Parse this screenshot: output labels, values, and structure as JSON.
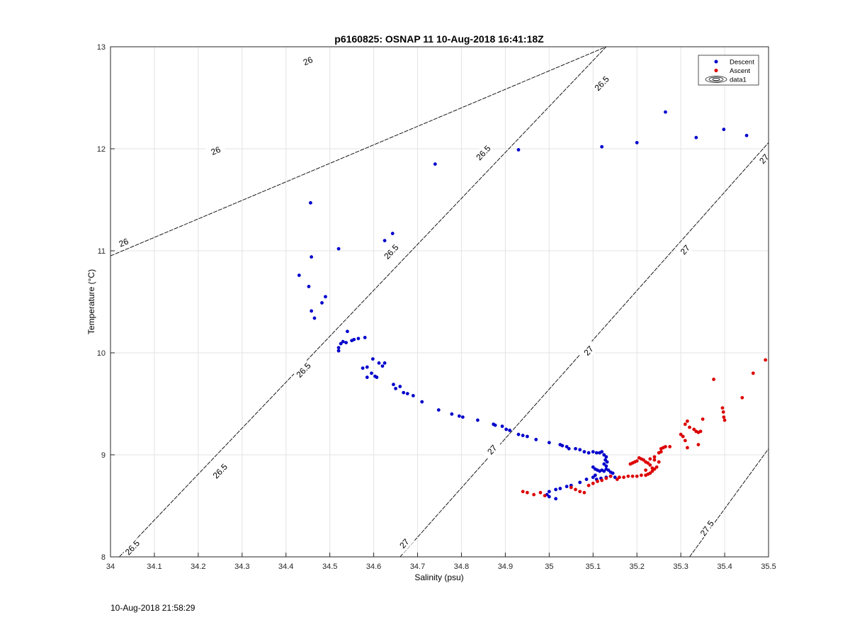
{
  "chart_data": {
    "type": "scatter",
    "title": "p6160825: OSNAP 11 10-Aug-2018 16:41:18Z",
    "xlabel": "Salinity (psu)",
    "ylabel": "Temperature (°C)",
    "xlim": [
      34,
      35.5
    ],
    "ylim": [
      8,
      13
    ],
    "xticks": [
      "34",
      "34.1",
      "34.2",
      "34.3",
      "34.4",
      "34.5",
      "34.6",
      "34.7",
      "34.8",
      "34.9",
      "35",
      "35.1",
      "35.2",
      "35.3",
      "35.4",
      "35.5"
    ],
    "yticks": [
      "8",
      "9",
      "10",
      "11",
      "12",
      "13"
    ],
    "grid": true,
    "legend_position": "top-right",
    "legend": [
      "Descent",
      "Ascent",
      "data1"
    ],
    "density_contours": [
      {
        "sigma": 26,
        "line": [
          [
            34,
            10.95
          ],
          [
            35.13,
            13.0
          ]
        ],
        "labels": [
          {
            "text": "26",
            "s": 34.03,
            "t": 11.08
          },
          {
            "text": "26",
            "s": 34.24,
            "t": 11.98
          },
          {
            "text": "26",
            "s": 34.45,
            "t": 12.86
          }
        ]
      },
      {
        "sigma": 26.5,
        "line": [
          [
            34.02,
            8.0
          ],
          [
            35.13,
            13.0
          ]
        ],
        "labels": [
          {
            "text": "26.5",
            "s": 34.05,
            "t": 8.09
          },
          {
            "text": "26.5",
            "s": 34.25,
            "t": 8.84
          },
          {
            "text": "26.5",
            "s": 34.44,
            "t": 9.83
          },
          {
            "text": "26.5",
            "s": 34.64,
            "t": 10.99
          },
          {
            "text": "26.5",
            "s": 34.85,
            "t": 11.96
          },
          {
            "text": "26.5",
            "s": 35.12,
            "t": 12.64
          }
        ]
      },
      {
        "sigma": 27,
        "line": [
          [
            34.66,
            8.0
          ],
          [
            35.5,
            12.06
          ]
        ],
        "labels": [
          {
            "text": "27",
            "s": 34.67,
            "t": 8.13
          },
          {
            "text": "27",
            "s": 34.87,
            "t": 9.05
          },
          {
            "text": "27",
            "s": 35.09,
            "t": 10.02
          },
          {
            "text": "27",
            "s": 35.31,
            "t": 11.01
          },
          {
            "text": "27",
            "s": 35.49,
            "t": 11.9
          }
        ]
      },
      {
        "sigma": 27.5,
        "line": [
          [
            35.32,
            8.0
          ],
          [
            35.5,
            9.06
          ]
        ],
        "labels": [
          {
            "text": "27.5",
            "s": 35.36,
            "t": 8.28
          }
        ]
      }
    ],
    "series": [
      {
        "name": "Descent",
        "color": "#0000cc",
        "points": [
          [
            34.456,
            11.47
          ],
          [
            34.458,
            10.94
          ],
          [
            34.43,
            10.76
          ],
          [
            34.452,
            10.65
          ],
          [
            34.458,
            10.41
          ],
          [
            34.465,
            10.34
          ],
          [
            34.482,
            10.49
          ],
          [
            34.49,
            10.55
          ],
          [
            34.52,
            11.02
          ],
          [
            34.625,
            11.1
          ],
          [
            34.643,
            11.17
          ],
          [
            34.74,
            11.85
          ],
          [
            34.93,
            11.99
          ],
          [
            35.12,
            12.02
          ],
          [
            35.2,
            12.06
          ],
          [
            35.265,
            12.36
          ],
          [
            35.335,
            12.11
          ],
          [
            35.398,
            12.19
          ],
          [
            35.45,
            12.13
          ],
          [
            34.52,
            10.05
          ],
          [
            34.52,
            10.02
          ],
          [
            34.525,
            10.09
          ],
          [
            34.53,
            10.11
          ],
          [
            34.537,
            10.1
          ],
          [
            34.54,
            10.21
          ],
          [
            34.55,
            10.12
          ],
          [
            34.555,
            10.13
          ],
          [
            34.565,
            10.14
          ],
          [
            34.58,
            10.15
          ],
          [
            34.575,
            9.85
          ],
          [
            34.585,
            9.86
          ],
          [
            34.585,
            9.76
          ],
          [
            34.595,
            9.8
          ],
          [
            34.598,
            9.94
          ],
          [
            34.603,
            9.77
          ],
          [
            34.607,
            9.76
          ],
          [
            34.612,
            9.9
          ],
          [
            34.62,
            9.87
          ],
          [
            34.625,
            9.9
          ],
          [
            34.645,
            9.69
          ],
          [
            34.65,
            9.65
          ],
          [
            34.66,
            9.67
          ],
          [
            34.668,
            9.61
          ],
          [
            34.677,
            9.6
          ],
          [
            34.69,
            9.58
          ],
          [
            34.71,
            9.52
          ],
          [
            34.748,
            9.44
          ],
          [
            34.778,
            9.4
          ],
          [
            34.795,
            9.38
          ],
          [
            34.803,
            9.37
          ],
          [
            34.837,
            9.34
          ],
          [
            34.873,
            9.3
          ],
          [
            34.877,
            9.29
          ],
          [
            34.893,
            9.28
          ],
          [
            34.902,
            9.25
          ],
          [
            34.91,
            9.24
          ],
          [
            34.93,
            9.2
          ],
          [
            34.94,
            9.19
          ],
          [
            34.95,
            9.18
          ],
          [
            34.97,
            9.15
          ],
          [
            35.0,
            9.12
          ],
          [
            35.025,
            9.1
          ],
          [
            35.03,
            9.09
          ],
          [
            35.04,
            9.08
          ],
          [
            35.045,
            9.06
          ],
          [
            35.06,
            9.06
          ],
          [
            35.07,
            9.05
          ],
          [
            35.08,
            9.03
          ],
          [
            35.09,
            9.02
          ],
          [
            35.1,
            9.03
          ],
          [
            35.108,
            9.02
          ],
          [
            35.115,
            9.02
          ],
          [
            35.12,
            9.03
          ],
          [
            35.125,
            9.0
          ],
          [
            35.13,
            8.98
          ],
          [
            35.128,
            8.95
          ],
          [
            35.132,
            8.93
          ],
          [
            35.125,
            8.91
          ],
          [
            35.13,
            8.89
          ],
          [
            35.1,
            8.88
          ],
          [
            35.105,
            8.86
          ],
          [
            35.11,
            8.85
          ],
          [
            35.115,
            8.84
          ],
          [
            35.12,
            8.85
          ],
          [
            35.125,
            8.84
          ],
          [
            35.13,
            8.86
          ],
          [
            35.135,
            8.85
          ],
          [
            35.14,
            8.83
          ],
          [
            35.145,
            8.82
          ],
          [
            35.105,
            8.8
          ],
          [
            35.1,
            8.78
          ],
          [
            35.108,
            8.76
          ],
          [
            35.118,
            8.77
          ],
          [
            35.13,
            8.78
          ],
          [
            35.14,
            8.79
          ],
          [
            35.15,
            8.78
          ],
          [
            35.085,
            8.76
          ],
          [
            35.07,
            8.73
          ],
          [
            35.05,
            8.7
          ],
          [
            35.04,
            8.69
          ],
          [
            35.025,
            8.67
          ],
          [
            35.015,
            8.66
          ],
          [
            35.0,
            8.64
          ],
          [
            34.995,
            8.61
          ],
          [
            35.0,
            8.59
          ],
          [
            35.015,
            8.57
          ]
        ]
      },
      {
        "name": "Ascent",
        "color": "#dd0000",
        "points": [
          [
            34.94,
            8.64
          ],
          [
            34.95,
            8.63
          ],
          [
            34.965,
            8.61
          ],
          [
            34.98,
            8.63
          ],
          [
            34.99,
            8.6
          ],
          [
            35.05,
            8.68
          ],
          [
            35.06,
            8.66
          ],
          [
            35.07,
            8.64
          ],
          [
            35.08,
            8.63
          ],
          [
            35.09,
            8.7
          ],
          [
            35.1,
            8.72
          ],
          [
            35.11,
            8.74
          ],
          [
            35.12,
            8.75
          ],
          [
            35.13,
            8.77
          ],
          [
            35.14,
            8.79
          ],
          [
            35.155,
            8.76
          ],
          [
            35.16,
            8.78
          ],
          [
            35.17,
            8.78
          ],
          [
            35.18,
            8.79
          ],
          [
            35.19,
            8.79
          ],
          [
            35.2,
            8.79
          ],
          [
            35.21,
            8.8
          ],
          [
            35.22,
            8.8
          ],
          [
            35.225,
            8.81
          ],
          [
            35.23,
            8.82
          ],
          [
            35.235,
            8.84
          ],
          [
            35.24,
            8.86
          ],
          [
            35.245,
            8.88
          ],
          [
            35.23,
            8.9
          ],
          [
            35.225,
            8.92
          ],
          [
            35.22,
            8.93
          ],
          [
            35.215,
            8.95
          ],
          [
            35.21,
            8.96
          ],
          [
            35.205,
            8.97
          ],
          [
            35.2,
            8.94
          ],
          [
            35.195,
            8.93
          ],
          [
            35.19,
            8.92
          ],
          [
            35.185,
            8.91
          ],
          [
            35.23,
            8.96
          ],
          [
            35.24,
            8.98
          ],
          [
            35.25,
            9.02
          ],
          [
            35.255,
            9.06
          ],
          [
            35.26,
            9.07
          ],
          [
            35.265,
            9.08
          ],
          [
            35.275,
            9.08
          ],
          [
            35.255,
            9.03
          ],
          [
            35.24,
            8.95
          ],
          [
            35.25,
            8.93
          ],
          [
            35.235,
            8.87
          ],
          [
            35.22,
            8.85
          ],
          [
            35.3,
            9.2
          ],
          [
            35.305,
            9.18
          ],
          [
            35.31,
            9.3
          ],
          [
            35.315,
            9.33
          ],
          [
            35.32,
            9.27
          ],
          [
            35.33,
            9.25
          ],
          [
            35.335,
            9.23
          ],
          [
            35.34,
            9.22
          ],
          [
            35.345,
            9.23
          ],
          [
            35.35,
            9.35
          ],
          [
            35.31,
            9.14
          ],
          [
            35.315,
            9.07
          ],
          [
            35.34,
            9.1
          ],
          [
            35.375,
            9.74
          ],
          [
            35.395,
            9.46
          ],
          [
            35.397,
            9.42
          ],
          [
            35.398,
            9.37
          ],
          [
            35.4,
            9.34
          ],
          [
            35.44,
            9.56
          ],
          [
            35.465,
            9.8
          ],
          [
            35.493,
            9.93
          ]
        ]
      }
    ]
  },
  "footer_timestamp": "10-Aug-2018 21:58:29"
}
